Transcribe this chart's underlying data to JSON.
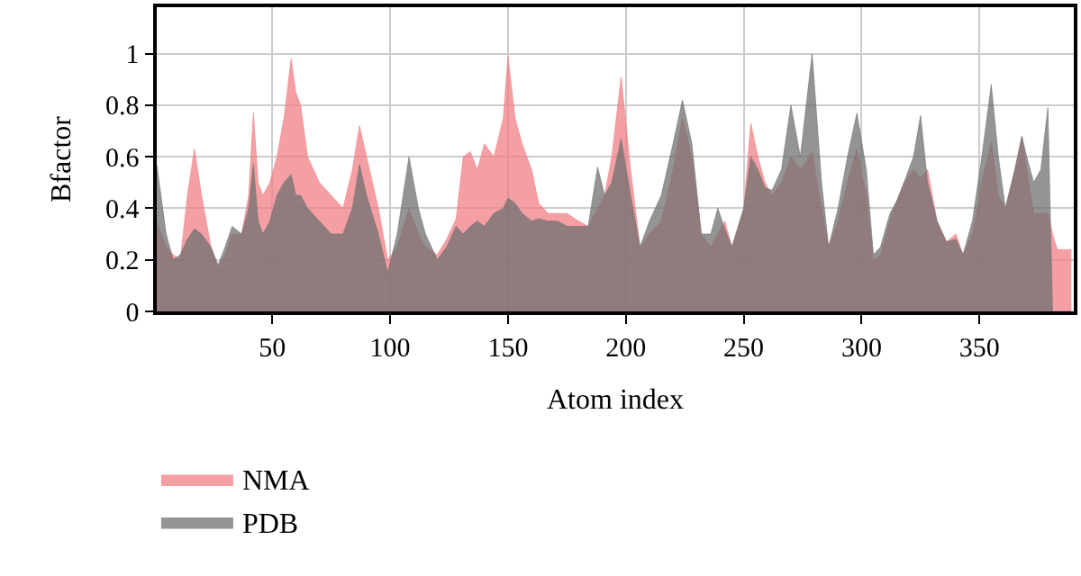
{
  "chart_data": {
    "type": "area",
    "xlabel": "Atom index",
    "ylabel": "Bfactor",
    "x": [
      1,
      5,
      8,
      11,
      14,
      17,
      20,
      24,
      27,
      30,
      33,
      37,
      40,
      42,
      44,
      46,
      49,
      52,
      55,
      58,
      60,
      62,
      65,
      70,
      75,
      80,
      84,
      87,
      90,
      95,
      99,
      103,
      108,
      112,
      115,
      120,
      124,
      128,
      131,
      134,
      137,
      140,
      144,
      148,
      150,
      153,
      156,
      160,
      163,
      167,
      171,
      175,
      180,
      184,
      188,
      191,
      194,
      198,
      202,
      206,
      210,
      215,
      220,
      224,
      228,
      232,
      236,
      239,
      242,
      245,
      250,
      253,
      256,
      259,
      262,
      266,
      270,
      274,
      279,
      283,
      286,
      290,
      294,
      298,
      302,
      305,
      308,
      312,
      315,
      318,
      322,
      325,
      328,
      332,
      336,
      340,
      343,
      347,
      351,
      355,
      358,
      361,
      365,
      368,
      370,
      373,
      376,
      379,
      381,
      383,
      386,
      389
    ],
    "series": [
      {
        "name": "NMA",
        "color": "#f07f85",
        "values": [
          0.35,
          0.25,
          0.22,
          0.2,
          0.45,
          0.63,
          0.45,
          0.25,
          0.17,
          0.22,
          0.3,
          0.3,
          0.45,
          0.77,
          0.5,
          0.45,
          0.5,
          0.6,
          0.75,
          0.98,
          0.85,
          0.8,
          0.6,
          0.5,
          0.45,
          0.4,
          0.55,
          0.72,
          0.6,
          0.4,
          0.2,
          0.25,
          0.4,
          0.3,
          0.25,
          0.22,
          0.28,
          0.36,
          0.6,
          0.62,
          0.55,
          0.65,
          0.6,
          0.75,
          0.99,
          0.75,
          0.65,
          0.55,
          0.42,
          0.38,
          0.38,
          0.38,
          0.35,
          0.33,
          0.4,
          0.45,
          0.6,
          0.91,
          0.55,
          0.25,
          0.3,
          0.35,
          0.55,
          0.75,
          0.6,
          0.3,
          0.25,
          0.3,
          0.35,
          0.25,
          0.4,
          0.73,
          0.6,
          0.5,
          0.45,
          0.5,
          0.6,
          0.55,
          0.62,
          0.4,
          0.25,
          0.35,
          0.5,
          0.63,
          0.45,
          0.2,
          0.22,
          0.35,
          0.43,
          0.5,
          0.55,
          0.52,
          0.55,
          0.35,
          0.27,
          0.3,
          0.22,
          0.3,
          0.5,
          0.66,
          0.45,
          0.4,
          0.55,
          0.68,
          0.55,
          0.38,
          0.38,
          0.38,
          0.3,
          0.24,
          0.24,
          0.24
        ]
      },
      {
        "name": "PDB",
        "color": "#707070",
        "values": [
          0.57,
          0.3,
          0.2,
          0.22,
          0.28,
          0.32,
          0.3,
          0.25,
          0.18,
          0.25,
          0.33,
          0.3,
          0.4,
          0.57,
          0.35,
          0.3,
          0.35,
          0.45,
          0.5,
          0.53,
          0.45,
          0.45,
          0.4,
          0.35,
          0.3,
          0.3,
          0.4,
          0.57,
          0.45,
          0.3,
          0.15,
          0.3,
          0.6,
          0.4,
          0.3,
          0.2,
          0.25,
          0.33,
          0.3,
          0.33,
          0.35,
          0.33,
          0.38,
          0.4,
          0.44,
          0.42,
          0.38,
          0.35,
          0.36,
          0.35,
          0.35,
          0.33,
          0.33,
          0.33,
          0.56,
          0.45,
          0.5,
          0.67,
          0.45,
          0.25,
          0.35,
          0.45,
          0.65,
          0.82,
          0.65,
          0.3,
          0.3,
          0.4,
          0.32,
          0.25,
          0.4,
          0.6,
          0.55,
          0.48,
          0.47,
          0.55,
          0.8,
          0.6,
          1.0,
          0.5,
          0.25,
          0.4,
          0.6,
          0.77,
          0.55,
          0.22,
          0.25,
          0.38,
          0.43,
          0.5,
          0.6,
          0.76,
          0.5,
          0.35,
          0.27,
          0.28,
          0.22,
          0.35,
          0.6,
          0.88,
          0.6,
          0.4,
          0.55,
          0.68,
          0.6,
          0.5,
          0.55,
          0.79,
          0.0,
          0.0,
          0.0,
          0.0
        ]
      }
    ],
    "xlim": [
      1,
      390
    ],
    "ylim": [
      0,
      1.18
    ],
    "xticks": [
      50,
      100,
      150,
      200,
      250,
      300,
      350
    ],
    "yticks": [
      0,
      0.2,
      0.4,
      0.6,
      0.8,
      1
    ],
    "grid": true,
    "legend": "bottom left"
  }
}
